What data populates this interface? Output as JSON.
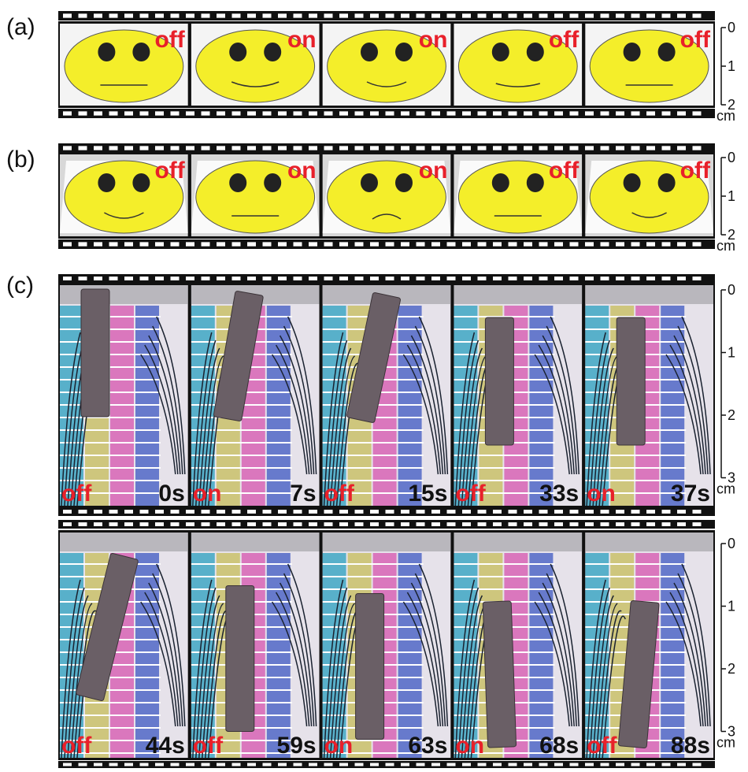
{
  "panels": [
    {
      "label": "(a)",
      "frames": [
        {
          "state": "off"
        },
        {
          "state": "on"
        },
        {
          "state": "on"
        },
        {
          "state": "off"
        },
        {
          "state": "off"
        }
      ],
      "scale": {
        "ticks": [
          0,
          1,
          2
        ],
        "unit": "cm"
      }
    },
    {
      "label": "(b)",
      "frames": [
        {
          "state": "off"
        },
        {
          "state": "on"
        },
        {
          "state": "on"
        },
        {
          "state": "off"
        },
        {
          "state": "off"
        }
      ],
      "scale": {
        "ticks": [
          0,
          1,
          2
        ],
        "unit": "cm"
      }
    },
    {
      "label": "(c)",
      "rows": [
        {
          "frames": [
            {
              "state": "off",
              "time": "0s"
            },
            {
              "state": "on",
              "time": "7s"
            },
            {
              "state": "off",
              "time": "15s"
            },
            {
              "state": "off",
              "time": "33s"
            },
            {
              "state": "on",
              "time": "37s"
            }
          ],
          "scale": {
            "ticks": [
              0,
              1,
              2,
              3
            ],
            "unit": "cm"
          }
        },
        {
          "frames": [
            {
              "state": "off",
              "time": "44s"
            },
            {
              "state": "off",
              "time": "59s"
            },
            {
              "state": "on",
              "time": "63s"
            },
            {
              "state": "on",
              "time": "68s"
            },
            {
              "state": "off",
              "time": "88s"
            }
          ],
          "scale": {
            "ticks": [
              0,
              1,
              2,
              3
            ],
            "unit": "cm"
          }
        }
      ]
    }
  ]
}
